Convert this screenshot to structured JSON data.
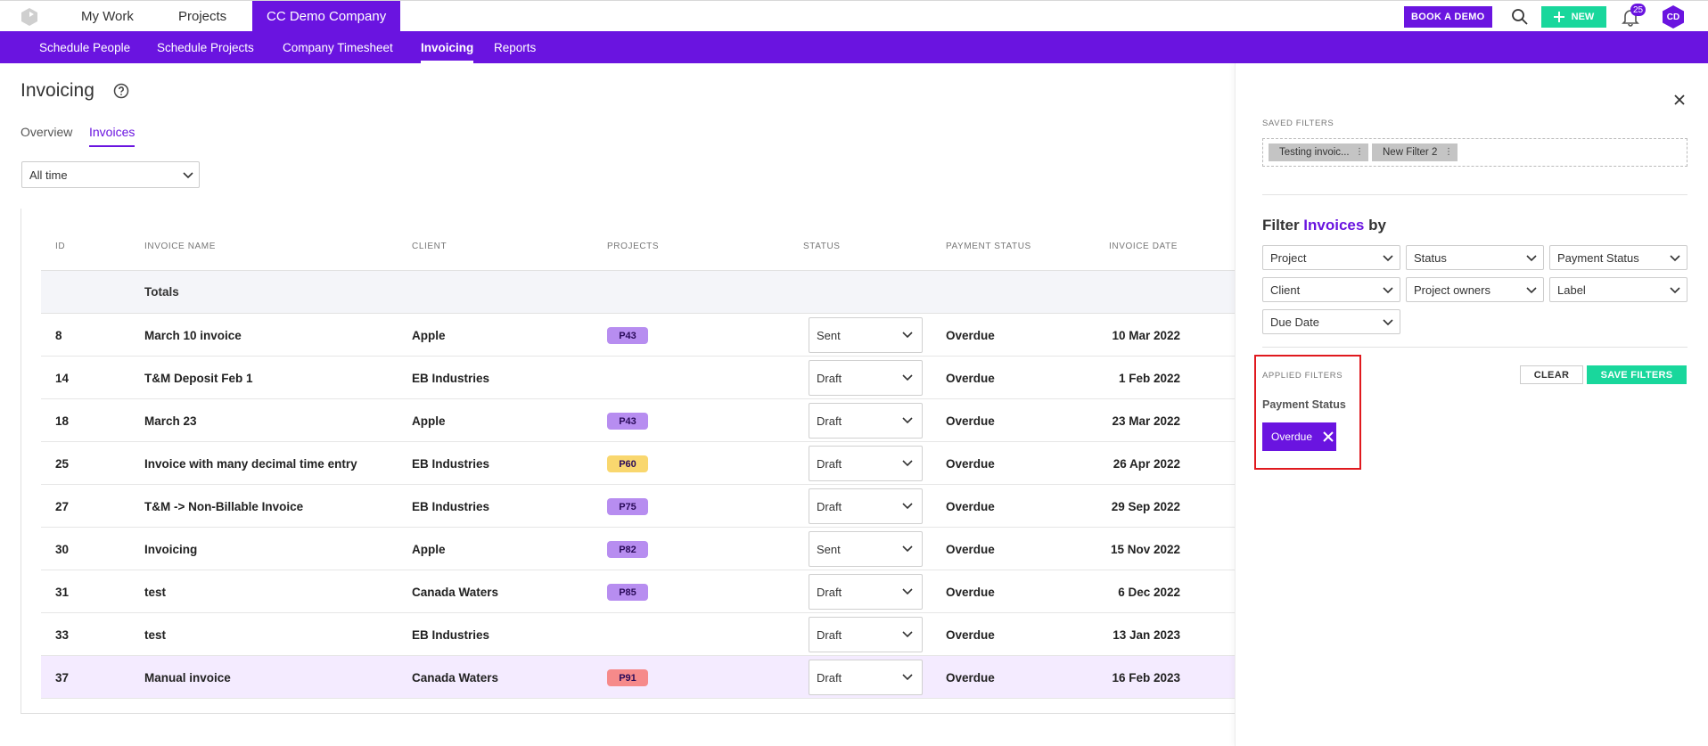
{
  "topnav": {
    "tabs": [
      {
        "label": "My Work"
      },
      {
        "label": "Projects"
      },
      {
        "label": "CC Demo Company"
      }
    ],
    "book_demo": "BOOK A DEMO",
    "new_label": "NEW",
    "notification_count": "25",
    "avatar_initials": "CD"
  },
  "subnav": {
    "items": [
      {
        "label": "Schedule People"
      },
      {
        "label": "Schedule Projects"
      },
      {
        "label": "Company Timesheet"
      },
      {
        "label": "Invoicing"
      },
      {
        "label": "Reports"
      }
    ]
  },
  "page": {
    "title": "Invoicing",
    "tabs": [
      {
        "label": "Overview"
      },
      {
        "label": "Invoices"
      }
    ],
    "time_filter": "All time"
  },
  "table": {
    "columns": [
      "ID",
      "INVOICE NAME",
      "CLIENT",
      "PROJECTS",
      "STATUS",
      "PAYMENT STATUS",
      "INVOICE DATE"
    ],
    "totals_label": "Totals",
    "rows": [
      {
        "id": "8",
        "name": "March 10 invoice",
        "client": "Apple",
        "project": "P43",
        "status": "Sent",
        "payment": "Overdue",
        "date": "10 Mar 2022"
      },
      {
        "id": "14",
        "name": "T&M Deposit Feb 1",
        "client": "EB Industries",
        "project": "",
        "status": "Draft",
        "payment": "Overdue",
        "date": "1 Feb 2022"
      },
      {
        "id": "18",
        "name": "March 23",
        "client": "Apple",
        "project": "P43",
        "status": "Draft",
        "payment": "Overdue",
        "date": "23 Mar 2022"
      },
      {
        "id": "25",
        "name": "Invoice with many decimal time entry",
        "client": "EB Industries",
        "project": "P60",
        "status": "Draft",
        "payment": "Overdue",
        "date": "26 Apr 2022"
      },
      {
        "id": "27",
        "name": "T&M -> Non-Billable Invoice",
        "client": "EB Industries",
        "project": "P75",
        "status": "Draft",
        "payment": "Overdue",
        "date": "29 Sep 2022"
      },
      {
        "id": "30",
        "name": "Invoicing",
        "client": "Apple",
        "project": "P82",
        "status": "Sent",
        "payment": "Overdue",
        "date": "15 Nov 2022"
      },
      {
        "id": "31",
        "name": "test",
        "client": "Canada Waters",
        "project": "P85",
        "status": "Draft",
        "payment": "Overdue",
        "date": "6 Dec 2022"
      },
      {
        "id": "33",
        "name": "test",
        "client": "EB Industries",
        "project": "",
        "status": "Draft",
        "payment": "Overdue",
        "date": "13 Jan 2023"
      },
      {
        "id": "37",
        "name": "Manual invoice",
        "client": "Canada Waters",
        "project": "P91",
        "status": "Draft",
        "payment": "Overdue",
        "date": "16 Feb 2023"
      }
    ]
  },
  "badge_colors": {
    "P43": "#b78df0",
    "P60": "#f9d76e",
    "P75": "#b78df0",
    "P82": "#b78df0",
    "P85": "#b78df0",
    "P91": "#f68a8a"
  },
  "filters": {
    "saved_label": "SAVED FILTERS",
    "saved_chips": [
      {
        "label": "Testing invoic..."
      },
      {
        "label": "New Filter 2"
      }
    ],
    "title_prefix": "Filter",
    "title_accent": "Invoices",
    "title_suffix": "by",
    "selects": [
      {
        "label": "Project"
      },
      {
        "label": "Status"
      },
      {
        "label": "Payment Status"
      },
      {
        "label": "Client"
      },
      {
        "label": "Project owners"
      },
      {
        "label": "Label"
      },
      {
        "label": "Due Date"
      }
    ],
    "applied_label": "APPLIED FILTERS",
    "clear_label": "CLEAR",
    "save_label": "SAVE FILTERS",
    "applied_group": "Payment Status",
    "applied_value": "Overdue"
  },
  "colors": {
    "brand": "#6a14e0",
    "accent_green": "#19d79c",
    "highlight": "#e0191e"
  }
}
